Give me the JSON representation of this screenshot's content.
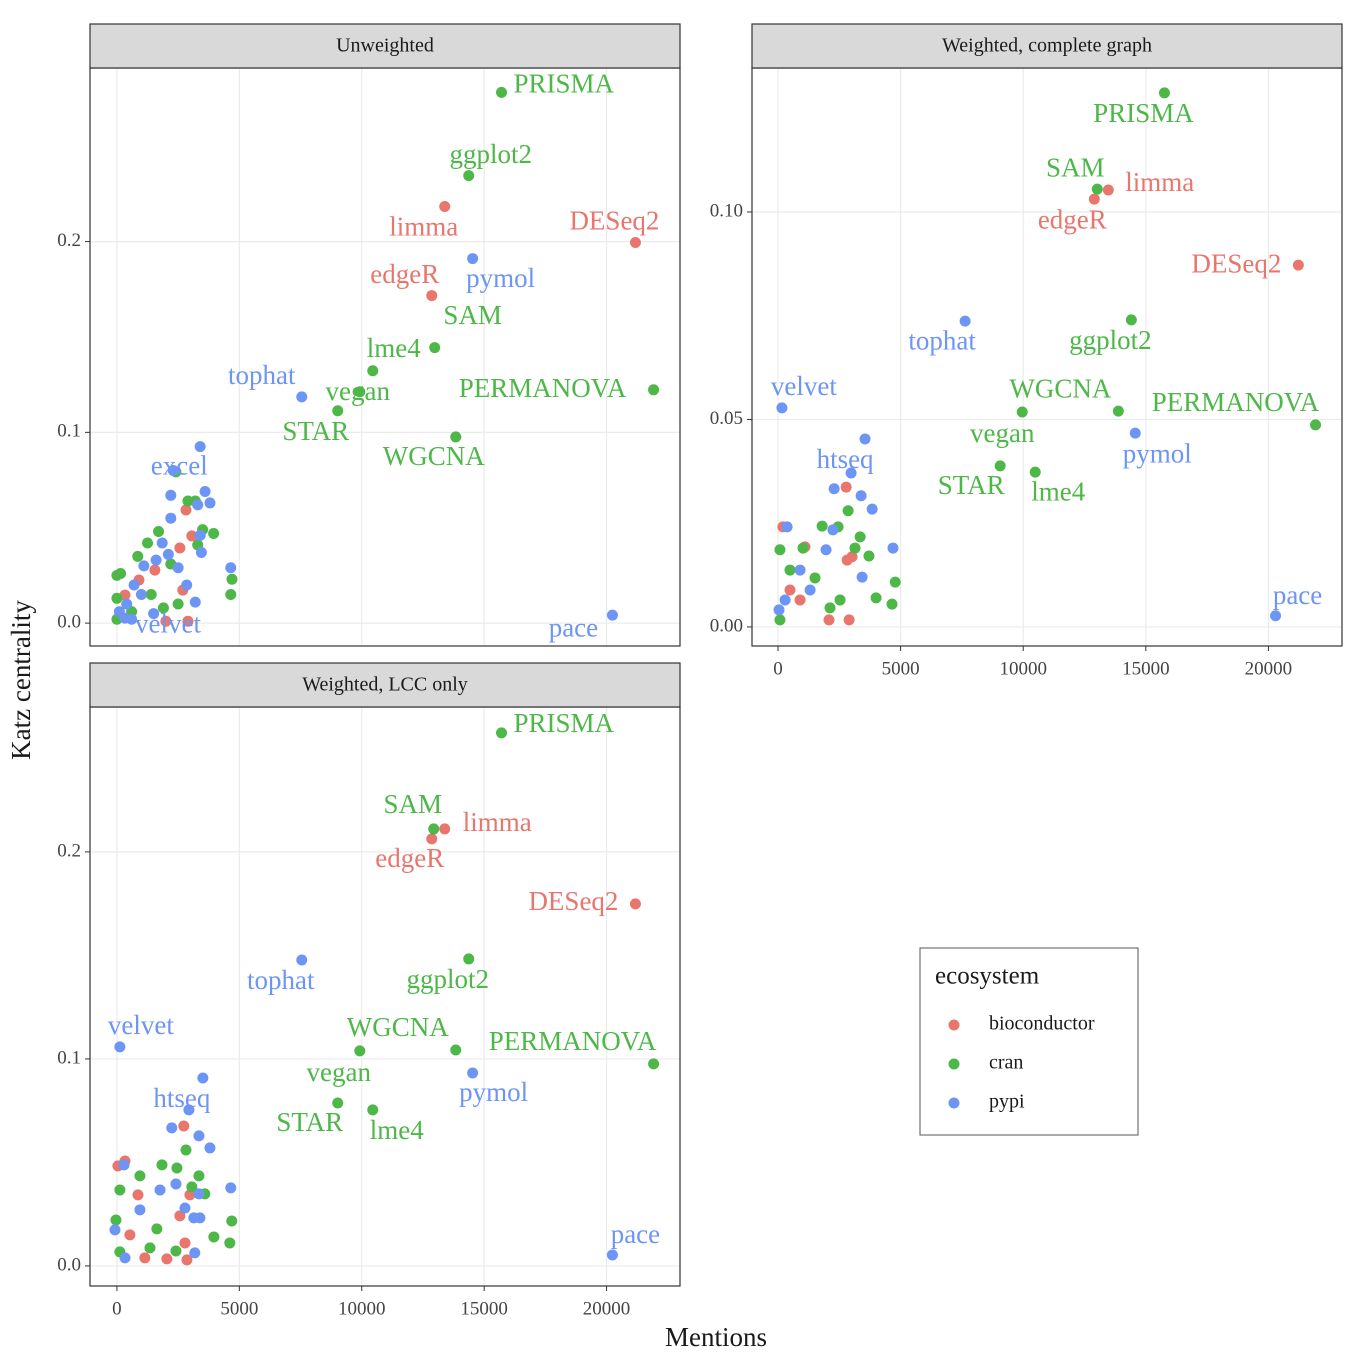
{
  "x_label": "Mentions",
  "y_label": "Katz centrality",
  "legend": {
    "title": "ecosystem",
    "position": "bottom-right",
    "entries": [
      {
        "name": "bioconductor",
        "color": "#e8766d"
      },
      {
        "name": "cran",
        "color": "#4db748"
      },
      {
        "name": "pypi",
        "color": "#6d95f5"
      }
    ]
  },
  "chart_data": [
    {
      "type": "scatter",
      "title": "Unweighted",
      "grid": true,
      "xlim": [
        -1100,
        23000
      ],
      "ylim": [
        -0.012,
        0.291
      ],
      "yticks": [
        {
          "value": 0,
          "label": "0.0"
        },
        0.1,
        0.2
      ],
      "series": [
        {
          "x": [
            13390,
            21180,
            12860,
            2570,
            2820,
            2690,
            3060,
            2000,
            900,
            330,
            1550,
            2900
          ],
          "values": [
            0.2184,
            0.1995,
            0.1717,
            0.0394,
            0.0593,
            0.0173,
            0.0457,
            0.001,
            0.0226,
            0.0147,
            0.0278,
            0.001
          ],
          "labels": [
            "limma",
            "DESeq2",
            "edgeR",
            null,
            null,
            null,
            null,
            null,
            null,
            null,
            null,
            null
          ]
        },
        {
          "x": [
            15710,
            14370,
            12980,
            10450,
            21920,
            9920,
            9020,
            13840,
            2410,
            2900,
            3200,
            3500,
            3950,
            3300,
            4700,
            4650,
            2500,
            1700,
            1250,
            850,
            0,
            0,
            0,
            1900,
            1400,
            600,
            2200,
            150
          ],
          "values": [
            0.2782,
            0.2346,
            0.1444,
            0.1323,
            0.1223,
            0.1213,
            0.1113,
            0.0976,
            0.0793,
            0.064,
            0.064,
            0.049,
            0.047,
            0.041,
            0.023,
            0.015,
            0.01,
            0.048,
            0.042,
            0.035,
            0.025,
            0.013,
            0.002,
            0.008,
            0.015,
            0.006,
            0.031,
            0.026
          ],
          "labels": [
            "PRISMA",
            "ggplot2",
            "SAM",
            "lme4",
            "PERMANOVA",
            "vegan",
            "STAR",
            "WGCNA",
            null,
            null,
            null,
            null,
            null,
            null,
            null,
            null,
            null,
            null,
            null,
            null,
            null,
            null,
            null,
            null,
            null,
            null,
            null,
            null
          ]
        },
        {
          "x": [
            14530,
            7550,
            2300,
            330,
            20240,
            3400,
            3600,
            3800,
            2200,
            3300,
            2200,
            3400,
            3450,
            4650,
            2850,
            3200,
            1850,
            2100,
            1600,
            1100,
            2500,
            700,
            400,
            100,
            1000,
            600,
            1500
          ],
          "values": [
            0.1911,
            0.1186,
            0.08,
            0.0026,
            0.0042,
            0.0925,
            0.069,
            0.063,
            0.067,
            0.062,
            0.055,
            0.046,
            0.037,
            0.029,
            0.02,
            0.011,
            0.042,
            0.036,
            0.033,
            0.03,
            0.029,
            0.02,
            0.01,
            0.006,
            0.015,
            0.002,
            0.005
          ],
          "labels": [
            "pymol",
            "tophat",
            "excel",
            "velvet",
            "pace",
            null,
            null,
            null,
            null,
            null,
            null,
            null,
            null,
            null,
            null,
            null,
            null,
            null,
            null,
            null,
            null,
            null,
            null,
            null,
            null,
            null,
            null
          ]
        }
      ]
    },
    {
      "type": "scatter",
      "title": "Weighted, complete graph",
      "grid": true,
      "xlim": [
        -1060,
        23000
      ],
      "ylim": [
        -0.0046,
        0.1347
      ],
      "xticks": [
        0,
        5000,
        10000,
        15000,
        20000
      ],
      "yticks": [
        {
          "value": 0,
          "label": "0.00"
        },
        0.05,
        {
          "value": 0.1,
          "label": "0.10"
        }
      ],
      "series": [
        {
          "x": [
            13470,
            12900,
            21220,
            2780,
            2820,
            2900,
            2080,
            200,
            1100,
            490,
            900,
            3020
          ],
          "values": [
            0.1053,
            0.1031,
            0.0872,
            0.0337,
            0.0161,
            0.0017,
            0.0017,
            0.0241,
            0.0193,
            0.0089,
            0.0065,
            0.0169
          ],
          "labels": [
            "limma",
            "edgeR",
            "DESeq2",
            null,
            null,
            null,
            null,
            null,
            null,
            null,
            null,
            null
          ]
        },
        {
          "x": [
            15760,
            13020,
            14410,
            13880,
            21920,
            9960,
            9060,
            10490,
            1800,
            2450,
            2860,
            3140,
            3350,
            3710,
            4780,
            4650,
            4000,
            2120,
            1020,
            80,
            80,
            490,
            1510,
            2530
          ],
          "values": [
            0.1287,
            0.1055,
            0.074,
            0.052,
            0.0487,
            0.0518,
            0.0388,
            0.0373,
            0.0243,
            0.0241,
            0.028,
            0.019,
            0.0217,
            0.0171,
            0.0108,
            0.0055,
            0.007,
            0.0046,
            0.019,
            0.0186,
            0.0017,
            0.0137,
            0.0118,
            0.0065
          ],
          "labels": [
            "PRISMA",
            "SAM",
            "ggplot2",
            "WGCNA",
            "PERMANOVA",
            "vegan",
            "STAR",
            "lme4",
            null,
            null,
            null,
            null,
            null,
            null,
            null,
            null,
            null,
            null,
            null,
            null,
            null,
            null,
            null,
            null
          ]
        },
        {
          "x": [
            7630,
            160,
            14570,
            2980,
            20290,
            3550,
            3390,
            2290,
            4690,
            3840,
            3430,
            2240,
            1960,
            370,
            900,
            290,
            1310,
            40
          ],
          "values": [
            0.0737,
            0.0528,
            0.0467,
            0.0371,
            0.0027,
            0.0453,
            0.0316,
            0.0333,
            0.019,
            0.0284,
            0.012,
            0.0234,
            0.0186,
            0.0241,
            0.0137,
            0.0065,
            0.0089,
            0.0041
          ],
          "labels": [
            "tophat",
            "velvet",
            "pymol",
            "htseq",
            "pace",
            null,
            null,
            null,
            null,
            null,
            null,
            null,
            null,
            null,
            null,
            null,
            null,
            null
          ]
        }
      ]
    },
    {
      "type": "scatter",
      "title": "Weighted, LCC only",
      "grid": true,
      "xlim": [
        -1100,
        23000
      ],
      "ylim": [
        -0.0097,
        0.27
      ],
      "xticks": [
        0,
        5000,
        10000,
        15000,
        20000
      ],
      "yticks": [
        {
          "value": 0,
          "label": "0.0"
        },
        0.1,
        0.2
      ],
      "series": [
        {
          "x": [
            13390,
            12860,
            21180,
            2730,
            330,
            40,
            860,
            2980,
            2570,
            2040,
            2860,
            2780,
            530,
            1140
          ],
          "values": [
            0.2111,
            0.2063,
            0.1749,
            0.0676,
            0.0507,
            0.0483,
            0.0343,
            0.0343,
            0.0242,
            0.0034,
            0.0029,
            0.0111,
            0.015,
            0.0039
          ],
          "labels": [
            "limma",
            "edgeR",
            "DESeq2",
            null,
            null,
            null,
            null,
            null,
            null,
            null,
            null,
            null,
            null,
            null
          ]
        },
        {
          "x": [
            15710,
            12940,
            14370,
            13840,
            21920,
            9920,
            9020,
            10450,
            2820,
            2450,
            3350,
            1840,
            940,
            120,
            4690,
            4610,
            3960,
            3060,
            3590,
            2410,
            1630,
            1350,
            -40,
            120
          ],
          "values": [
            0.2575,
            0.2111,
            0.1483,
            0.1043,
            0.0976,
            0.1039,
            0.0787,
            0.0754,
            0.056,
            0.0473,
            0.0435,
            0.0488,
            0.0435,
            0.0367,
            0.0217,
            0.0111,
            0.014,
            0.0382,
            0.0348,
            0.0072,
            0.0179,
            0.0087,
            0.0222,
            0.0068
          ],
          "labels": [
            "PRISMA",
            "SAM",
            "ggplot2",
            "WGCNA",
            "PERMANOVA",
            "vegan",
            "STAR",
            "lme4",
            null,
            null,
            null,
            null,
            null,
            null,
            null,
            null,
            null,
            null,
            null,
            null,
            null,
            null,
            null,
            null
          ]
        },
        {
          "x": [
            7550,
            120,
            14530,
            2940,
            20240,
            3510,
            2240,
            3350,
            3800,
            4650,
            3350,
            2410,
            2780,
            3140,
            3390,
            3180,
            290,
            1760,
            940,
            -80,
            330
          ],
          "values": [
            0.1478,
            0.1058,
            0.0932,
            0.0754,
            0.0053,
            0.0908,
            0.0667,
            0.0628,
            0.057,
            0.0377,
            0.0348,
            0.0396,
            0.028,
            0.0232,
            0.0232,
            0.0063,
            0.0488,
            0.0367,
            0.0271,
            0.0174,
            0.0039
          ],
          "labels": [
            "tophat",
            "velvet",
            "pymol",
            "htseq",
            "pace",
            null,
            null,
            null,
            null,
            null,
            null,
            null,
            null,
            null,
            null,
            null,
            null,
            null,
            null,
            null,
            null
          ]
        }
      ]
    }
  ]
}
